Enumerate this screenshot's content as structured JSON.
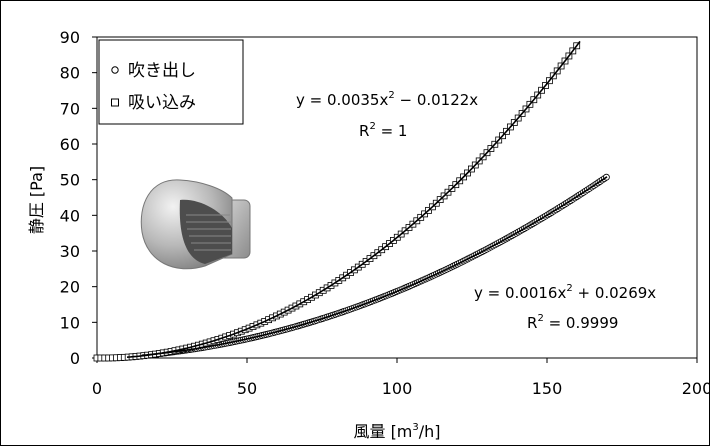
{
  "chart_data": {
    "type": "scatter",
    "xlabel": "風量",
    "xunit_pre": "[m",
    "xunit_sup": "3",
    "xunit_post": "/h]",
    "ylabel": "静圧 [Pa]",
    "xlim": [
      0,
      200
    ],
    "ylim": [
      0,
      90
    ],
    "xticks": [
      0,
      50,
      100,
      150,
      200
    ],
    "yticks": [
      0,
      10,
      20,
      30,
      40,
      50,
      60,
      70,
      80,
      90
    ],
    "grid": false,
    "legend_position": "top-left",
    "series": [
      {
        "name": "吹き出し",
        "marker": "circle",
        "fit": {
          "a": 0.0016,
          "b": 0.0269
        },
        "x_start": 20,
        "x_end": 170,
        "x_step": 0.7,
        "y_at_x_end": 51
      },
      {
        "name": "吸い込み",
        "marker": "square",
        "fit": {
          "a": 0.0035,
          "b": -0.0122
        },
        "x_start": 0,
        "x_end": 161,
        "x_step": 1.3,
        "y_at_x_end": 90
      }
    ],
    "annotations": [
      {
        "line1_pre": "y = 0.0035x",
        "line1_sup": "2",
        "line1_post": " − 0.0122x",
        "line2_pre": "R",
        "line2_sup": "2",
        "line2_post": " = 1"
      },
      {
        "line1_pre": "y = 0.0016x",
        "line1_sup": "2",
        "line1_post": " + 0.0269x",
        "line2_pre": "R",
        "line2_sup": "2",
        "line2_post": " = 0.9999"
      }
    ]
  }
}
